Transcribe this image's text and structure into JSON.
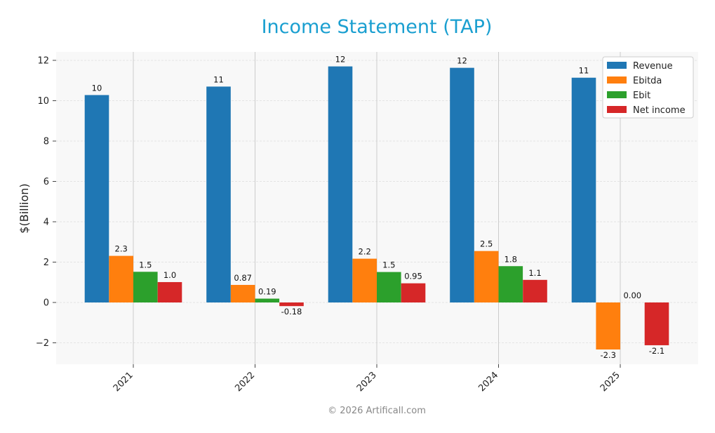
{
  "chart_data": {
    "type": "bar",
    "title": "Income Statement (TAP)",
    "xlabel": "",
    "ylabel": "$(Billion)",
    "categories": [
      "2021",
      "2022",
      "2023",
      "2024",
      "2025"
    ],
    "series": [
      {
        "name": "Revenue",
        "color": "#1f77b4",
        "values": [
          10.28,
          10.7,
          11.7,
          11.63,
          11.14
        ],
        "labels": [
          "10",
          "11",
          "12",
          "12",
          "11"
        ]
      },
      {
        "name": "Ebitda",
        "color": "#ff7f0e",
        "values": [
          2.31,
          0.87,
          2.17,
          2.55,
          -2.33
        ],
        "labels": [
          "2.3",
          "0.87",
          "2.2",
          "2.5",
          "-2.3"
        ]
      },
      {
        "name": "Ebit",
        "color": "#2ca02c",
        "values": [
          1.52,
          0.19,
          1.51,
          1.8,
          0.0
        ],
        "labels": [
          "1.5",
          "0.19",
          "1.5",
          "1.8",
          "0.00"
        ]
      },
      {
        "name": "Net income",
        "color": "#d62728",
        "values": [
          1.01,
          -0.18,
          0.95,
          1.12,
          -2.12
        ],
        "labels": [
          "1.0",
          "-0.18",
          "0.95",
          "1.1",
          "-2.1"
        ]
      }
    ],
    "yticks": [
      -2,
      0,
      2,
      4,
      6,
      8,
      10,
      12
    ],
    "ylim": [
      -3.0,
      12.4
    ],
    "grid": true,
    "legend": "top-right",
    "footer": "© 2026 Artificall.com"
  }
}
